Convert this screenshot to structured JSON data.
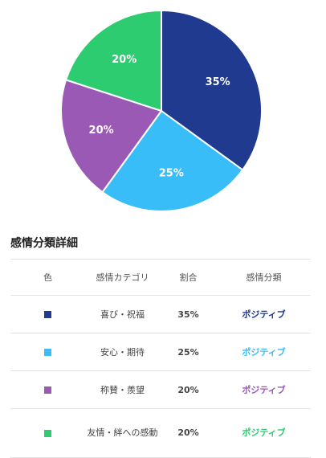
{
  "chart_data": {
    "type": "pie",
    "categories": [
      "喜び・祝福",
      "安心・期待",
      "称賛・羨望",
      "友情・絆への感動"
    ],
    "values": [
      35,
      25,
      20,
      20
    ],
    "labels": [
      "35%",
      "25%",
      "20%",
      "20%"
    ],
    "colors": [
      "#1f3a8f",
      "#38bdf8",
      "#9b59b6",
      "#2ecc71"
    ]
  },
  "details": {
    "title": "感情分類詳細",
    "headers": {
      "color": "色",
      "category": "感情カテゴリ",
      "ratio": "割合",
      "type": "感情分類"
    },
    "rows": [
      {
        "category": "喜び・祝福",
        "ratio": "35%",
        "type": "ポジティブ",
        "color": "#1f3a8f"
      },
      {
        "category": "安心・期待",
        "ratio": "25%",
        "type": "ポジティブ",
        "color": "#38bdf8"
      },
      {
        "category": "称賛・羨望",
        "ratio": "20%",
        "type": "ポジティブ",
        "color": "#9b59b6"
      },
      {
        "category": "友情・絆への感動",
        "ratio": "20%",
        "type": "ポジティブ",
        "color": "#2ecc71"
      }
    ]
  }
}
